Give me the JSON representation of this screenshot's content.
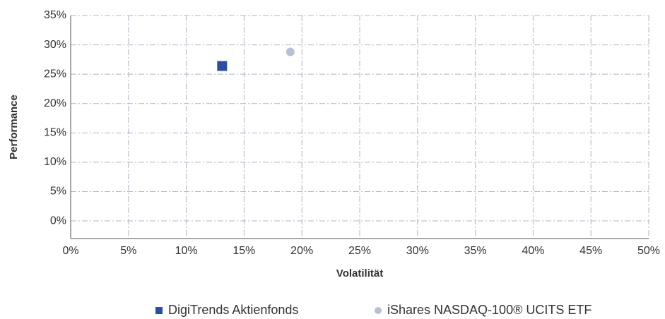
{
  "chart_data": {
    "type": "scatter",
    "x_label": "Volatilität",
    "y_label": "Performance",
    "xlim": [
      0,
      50
    ],
    "xticks": [
      {
        "value": 0,
        "label": "0%"
      },
      {
        "value": 5,
        "label": "5%"
      },
      {
        "value": 10,
        "label": "10%"
      },
      {
        "value": 15,
        "label": "15%"
      },
      {
        "value": 20,
        "label": "20%"
      },
      {
        "value": 25,
        "label": "25%"
      },
      {
        "value": 30,
        "label": "30%"
      },
      {
        "value": 35,
        "label": "35%"
      },
      {
        "value": 40,
        "label": "40%"
      },
      {
        "value": 45,
        "label": "45%"
      },
      {
        "value": 50,
        "label": "50%"
      }
    ],
    "ylim": [
      -3,
      35
    ],
    "yticks": [
      {
        "value": 0,
        "label": "0%"
      },
      {
        "value": 5,
        "label": "5%"
      },
      {
        "value": 10,
        "label": "10%"
      },
      {
        "value": 15,
        "label": "15%"
      },
      {
        "value": 20,
        "label": "20%"
      },
      {
        "value": 25,
        "label": "25%"
      },
      {
        "value": 30,
        "label": "30%"
      },
      {
        "value": 35,
        "label": "35%"
      }
    ],
    "grid": true,
    "legend": "bottom",
    "series": [
      {
        "name": "DigiTrends Aktienfonds",
        "color": "#2a4fa0",
        "marker": "square",
        "x": [
          13.1
        ],
        "values": [
          26.4
        ]
      },
      {
        "name": "iShares NASDAQ-100® UCITS ETF",
        "color": "#b8bfd6",
        "marker": "circle",
        "x": [
          19.0
        ],
        "values": [
          28.8
        ]
      }
    ]
  }
}
